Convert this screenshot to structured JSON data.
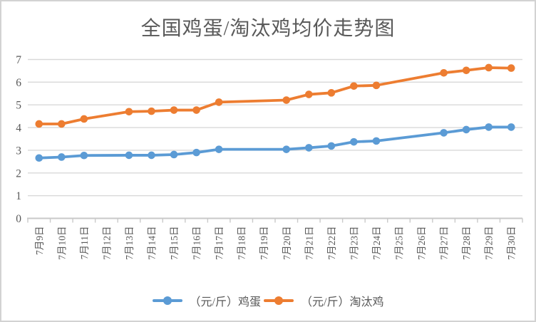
{
  "colors": {
    "egg_series": "#5B9BD5",
    "chicken_series": "#ED7D31",
    "gridline": "#D9D9D9",
    "axis_line": "#C9C9C9",
    "axis_text": "#595959",
    "title_text": "#595959",
    "frame_border": "#D2D2D2"
  },
  "chart_data": {
    "type": "line",
    "title": "全国鸡蛋/淘汰鸡均价走势图",
    "xlabel": "",
    "ylabel": "",
    "ylim": [
      0,
      7
    ],
    "ytick_interval": 1,
    "grid": true,
    "legend_position": "bottom",
    "marker": "circle",
    "missing_points_note": "no markers on 7月12日, 7月18日, 7月19日, 7月25日, 7月26日 (line connects across gaps)",
    "categories": [
      "7月9日",
      "7月10日",
      "7月11日",
      "7月12日",
      "7月13日",
      "7月14日",
      "7月15日",
      "7月16日",
      "7月17日",
      "7月18日",
      "7月19日",
      "7月20日",
      "7月21日",
      "7月22日",
      "7月23日",
      "7月24日",
      "7月25日",
      "7月26日",
      "7月27日",
      "7月28日",
      "7月29日",
      "7月30日"
    ],
    "series": [
      {
        "name": "（元/斤）鸡蛋",
        "color": "#5B9BD5",
        "values": [
          2.66,
          2.7,
          2.77,
          null,
          2.78,
          2.78,
          2.81,
          2.9,
          3.04,
          null,
          null,
          3.04,
          3.11,
          3.19,
          3.37,
          3.41,
          null,
          null,
          3.77,
          3.91,
          4.02,
          4.02
        ]
      },
      {
        "name": "（元/斤）淘汰鸡",
        "color": "#ED7D31",
        "values": [
          4.16,
          4.16,
          4.38,
          null,
          4.7,
          4.72,
          4.77,
          4.77,
          5.12,
          null,
          null,
          5.21,
          5.46,
          5.53,
          5.83,
          5.86,
          null,
          null,
          6.41,
          6.52,
          6.64,
          6.62
        ]
      }
    ]
  }
}
